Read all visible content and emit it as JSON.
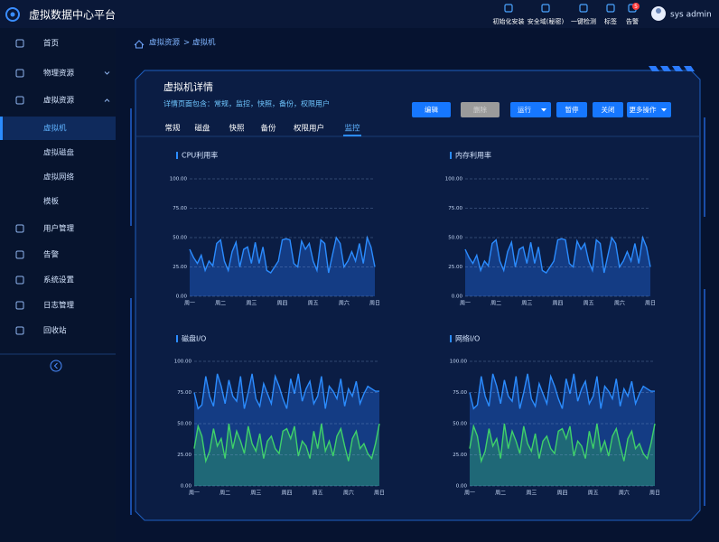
{
  "header": {
    "title": "虚拟数据中心平台",
    "actions": [
      "初始化安装",
      "安全域(秘密)",
      "一键检测",
      "标签",
      "告警"
    ],
    "alert_count": 5,
    "user": "sys admin"
  },
  "sidebar": {
    "items": [
      {
        "label": "首页"
      },
      {
        "label": "物理资源"
      },
      {
        "label": "虚拟资源",
        "children": [
          "虚拟机",
          "虚拟磁盘",
          "虚拟网络",
          "模板"
        ]
      },
      {
        "label": "用户管理"
      },
      {
        "label": "告警"
      },
      {
        "label": "系统设置"
      },
      {
        "label": "日志管理"
      },
      {
        "label": "回收站"
      }
    ]
  },
  "breadcrumb": [
    "虚拟资源",
    ">",
    "虚拟机"
  ],
  "panel": {
    "title": "虚拟机详情",
    "description": "详情页面包含：常规，监控，快照，备份，权限用户",
    "buttons": [
      "编辑",
      "删除",
      "运行",
      "暂停",
      "关闭",
      "更多操作"
    ],
    "tabs": [
      "常规",
      "磁盘",
      "快照",
      "备份",
      "权限用户",
      "监控"
    ]
  },
  "chart_data": [
    {
      "type": "area",
      "title": "CPU利用率",
      "categories": [
        "周一",
        null,
        null,
        null,
        null,
        null,
        null,
        null,
        "周二",
        null,
        null,
        null,
        null,
        null,
        null,
        null,
        "周三",
        null,
        null,
        null,
        null,
        null,
        null,
        null,
        "周四",
        null,
        null,
        null,
        null,
        null,
        null,
        null,
        "周五",
        null,
        null,
        null,
        null,
        null,
        null,
        null,
        "周六",
        null,
        null,
        null,
        null,
        null,
        null,
        null,
        "周日"
      ],
      "series": [
        {
          "color": "#2b8cff",
          "values": [
            40,
            33,
            28,
            35,
            22,
            30,
            26,
            45,
            48,
            30,
            22,
            38,
            46,
            25,
            40,
            42,
            28,
            46,
            28,
            42,
            22,
            20,
            25,
            30,
            48,
            49,
            48,
            28,
            25,
            47,
            40,
            45,
            30,
            22,
            48,
            45,
            20,
            35,
            50,
            45,
            25,
            30,
            38,
            30,
            45,
            28,
            50,
            42,
            25
          ]
        }
      ],
      "ylim": [
        0,
        100
      ],
      "yticks": [
        {
          "value": 0,
          "label": "0.00"
        },
        {
          "value": 25,
          "label": "25.00"
        },
        {
          "value": 50,
          "label": "50.00"
        },
        {
          "value": 75,
          "label": "75.00"
        },
        {
          "value": 100,
          "label": "100.00"
        }
      ],
      "grid": true
    },
    {
      "type": "area",
      "title": "内存利用率",
      "categories": [
        "周一",
        null,
        null,
        null,
        null,
        null,
        null,
        null,
        "周二",
        null,
        null,
        null,
        null,
        null,
        null,
        null,
        "周三",
        null,
        null,
        null,
        null,
        null,
        null,
        null,
        "周四",
        null,
        null,
        null,
        null,
        null,
        null,
        null,
        "周五",
        null,
        null,
        null,
        null,
        null,
        null,
        null,
        "周六",
        null,
        null,
        null,
        null,
        null,
        null,
        null,
        "周日"
      ],
      "series": [
        {
          "color": "#2b8cff",
          "values": [
            40,
            33,
            28,
            35,
            22,
            30,
            26,
            45,
            48,
            30,
            22,
            38,
            46,
            25,
            40,
            42,
            28,
            46,
            28,
            42,
            22,
            20,
            25,
            30,
            48,
            49,
            48,
            28,
            25,
            47,
            40,
            45,
            30,
            22,
            48,
            45,
            20,
            35,
            50,
            45,
            25,
            30,
            38,
            30,
            45,
            28,
            50,
            42,
            25
          ]
        }
      ],
      "ylim": [
        0,
        100
      ],
      "yticks": [
        {
          "value": 0,
          "label": "0.00"
        },
        {
          "value": 25,
          "label": "25.00"
        },
        {
          "value": 50,
          "label": "50.00"
        },
        {
          "value": 75,
          "label": "75.00"
        },
        {
          "value": 100,
          "label": "100.00"
        }
      ],
      "grid": true
    },
    {
      "type": "area",
      "title": "磁盘I/O",
      "categories": [
        "周一",
        null,
        null,
        null,
        null,
        null,
        null,
        null,
        "周二",
        null,
        null,
        null,
        null,
        null,
        null,
        null,
        "周三",
        null,
        null,
        null,
        null,
        null,
        null,
        null,
        "周四",
        null,
        null,
        null,
        null,
        null,
        null,
        null,
        "周五",
        null,
        null,
        null,
        null,
        null,
        null,
        null,
        "周六",
        null,
        null,
        null,
        null,
        null,
        null,
        null,
        "周日"
      ],
      "series": [
        {
          "color": "#2b8cff",
          "values": [
            75,
            62,
            65,
            88,
            72,
            64,
            90,
            80,
            66,
            85,
            72,
            68,
            88,
            62,
            75,
            90,
            70,
            64,
            82,
            74,
            66,
            88,
            80,
            70,
            62,
            86,
            74,
            90,
            68,
            78,
            84,
            66,
            72,
            88,
            62,
            80,
            76,
            70,
            86,
            64,
            78,
            72,
            84,
            66,
            74,
            80,
            78,
            76,
            76
          ]
        },
        {
          "color": "#3fd16a",
          "values": [
            30,
            48,
            40,
            20,
            28,
            46,
            32,
            38,
            22,
            50,
            30,
            44,
            36,
            26,
            48,
            34,
            28,
            42,
            22,
            36,
            40,
            30,
            26,
            44,
            46,
            38,
            48,
            24,
            36,
            32,
            22,
            44,
            30,
            50,
            28,
            36,
            24,
            40,
            46,
            32,
            20,
            38,
            44,
            30,
            34,
            26,
            22,
            34,
            50
          ]
        }
      ],
      "ylim": [
        0,
        100
      ],
      "yticks": [
        {
          "value": 0,
          "label": "0.00"
        },
        {
          "value": 25,
          "label": "25.00"
        },
        {
          "value": 50,
          "label": "50.00"
        },
        {
          "value": 75,
          "label": "75.00"
        },
        {
          "value": 100,
          "label": "100.00"
        }
      ],
      "grid": true
    },
    {
      "type": "area",
      "title": "网络I/O",
      "categories": [
        "周一",
        null,
        null,
        null,
        null,
        null,
        null,
        null,
        "周二",
        null,
        null,
        null,
        null,
        null,
        null,
        null,
        "周三",
        null,
        null,
        null,
        null,
        null,
        null,
        null,
        "周四",
        null,
        null,
        null,
        null,
        null,
        null,
        null,
        "周五",
        null,
        null,
        null,
        null,
        null,
        null,
        null,
        "周六",
        null,
        null,
        null,
        null,
        null,
        null,
        null,
        "周日"
      ],
      "series": [
        {
          "color": "#2b8cff",
          "values": [
            75,
            62,
            65,
            88,
            72,
            64,
            90,
            80,
            66,
            85,
            72,
            68,
            88,
            62,
            75,
            90,
            70,
            64,
            82,
            74,
            66,
            88,
            80,
            70,
            62,
            86,
            74,
            90,
            68,
            78,
            84,
            66,
            72,
            88,
            62,
            80,
            76,
            70,
            86,
            64,
            78,
            72,
            84,
            66,
            74,
            80,
            78,
            76,
            76
          ]
        },
        {
          "color": "#3fd16a",
          "values": [
            30,
            48,
            40,
            20,
            28,
            46,
            32,
            38,
            22,
            50,
            30,
            44,
            36,
            26,
            48,
            34,
            28,
            42,
            22,
            36,
            40,
            30,
            26,
            44,
            46,
            38,
            48,
            24,
            36,
            32,
            22,
            44,
            30,
            50,
            28,
            36,
            24,
            40,
            46,
            32,
            20,
            38,
            44,
            30,
            34,
            26,
            22,
            34,
            50
          ]
        }
      ],
      "ylim": [
        0,
        100
      ],
      "yticks": [
        {
          "value": 0,
          "label": "0.00"
        },
        {
          "value": 25,
          "label": "25.00"
        },
        {
          "value": 50,
          "label": "50.00"
        },
        {
          "value": 75,
          "label": "75.00"
        },
        {
          "value": 100,
          "label": "100.00"
        }
      ],
      "grid": true
    }
  ]
}
